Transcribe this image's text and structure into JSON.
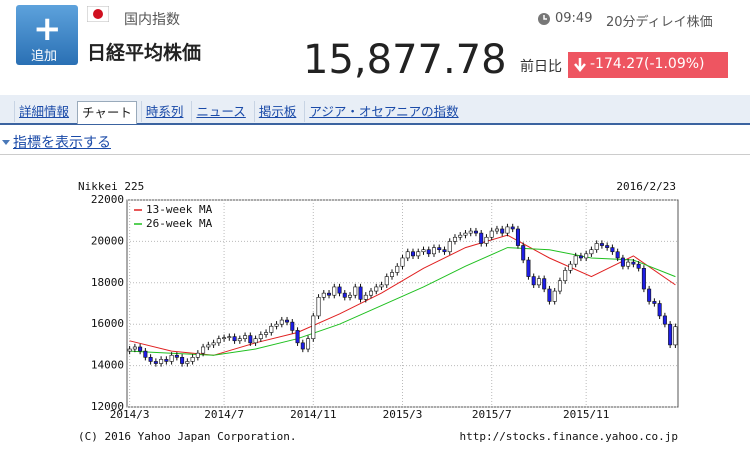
{
  "header": {
    "add_button": "追加",
    "market": "国内指数",
    "name": "日経平均株価",
    "time": "09:49",
    "delay": "20分ディレイ株価",
    "price": "15,877.78",
    "change_label": "前日比",
    "change": "-174.27(-1.09%)"
  },
  "tabs": [
    "詳細情報",
    "チャート",
    "時系列",
    "ニュース",
    "掲示板",
    "アジア・オセアニアの指数"
  ],
  "indicator_link": "指標を表示する",
  "chart_data": {
    "type": "candlestick",
    "title": "Nikkei 225",
    "date": "2016/2/23",
    "credit": "(C) 2016 Yahoo Japan Corporation.",
    "url": "http://stocks.finance.yahoo.co.jp",
    "up_color": "#ffffff",
    "down_color": "#1e1ee6",
    "grid": true,
    "xlim": [
      -0.5,
      104.5
    ],
    "xticks": [
      {
        "value": 0,
        "label": "2014/3"
      },
      {
        "value": 18,
        "label": "2014/7"
      },
      {
        "value": 35,
        "label": "2014/11"
      },
      {
        "value": 52,
        "label": "2015/3"
      },
      {
        "value": 69,
        "label": "2015/7"
      },
      {
        "value": 87,
        "label": "2015/11"
      }
    ],
    "ylim": [
      12000,
      22000
    ],
    "yticks": [
      12000,
      14000,
      16000,
      18000,
      20000,
      22000
    ],
    "open": [
      14700,
      14800,
      14900,
      14700,
      14400,
      14200,
      14100,
      14300,
      14200,
      14500,
      14400,
      14100,
      14200,
      14400,
      14600,
      14900,
      15000,
      15100,
      15300,
      15350,
      15400,
      15200,
      15300,
      15450,
      15100,
      15300,
      15500,
      15600,
      15900,
      16000,
      16200,
      16100,
      15700,
      15100,
      14800,
      15300,
      16400,
      17300,
      17500,
      17400,
      17800,
      17500,
      17300,
      17400,
      17800,
      17200,
      17400,
      17600,
      17800,
      17900,
      18300,
      18500,
      18800,
      19200,
      19500,
      19300,
      19500,
      19600,
      19400,
      19700,
      19600,
      19500,
      20000,
      20200,
      20300,
      20400,
      20500,
      20400,
      19900,
      20200,
      20500,
      20600,
      20400,
      20700,
      20600,
      19800,
      19100,
      18300,
      17900,
      18200,
      17700,
      17100,
      17600,
      18100,
      18600,
      18900,
      19300,
      19200,
      19400,
      19600,
      19900,
      19800,
      19700,
      19500,
      19200,
      18800,
      19000,
      18900,
      18700,
      17700,
      17100,
      17000,
      16400,
      16000,
      15000
    ],
    "high": [
      14950,
      15050,
      15050,
      14850,
      14550,
      14350,
      14450,
      14450,
      14650,
      14650,
      14550,
      14350,
      14550,
      14750,
      15050,
      15150,
      15250,
      15450,
      15500,
      15550,
      15550,
      15450,
      15600,
      15600,
      15450,
      15650,
      15750,
      16050,
      16150,
      16350,
      16350,
      16250,
      15850,
      15250,
      15450,
      16550,
      17450,
      17650,
      17650,
      17950,
      17950,
      17650,
      17550,
      17950,
      17950,
      17550,
      17750,
      17950,
      18050,
      18450,
      18650,
      18950,
      19350,
      19650,
      19650,
      19650,
      19750,
      19750,
      19850,
      19850,
      19750,
      20150,
      20350,
      20450,
      20550,
      20650,
      20650,
      20550,
      20350,
      20650,
      20750,
      20750,
      20850,
      20850,
      20750,
      19950,
      19250,
      18450,
      18350,
      18350,
      17850,
      17750,
      18250,
      18750,
      19050,
      19450,
      19450,
      19550,
      19750,
      20050,
      20050,
      19950,
      19850,
      19650,
      19350,
      19150,
      19150,
      19050,
      18850,
      17850,
      17250,
      17150,
      16550,
      16150,
      16030
    ],
    "low": [
      14550,
      14650,
      14550,
      14250,
      14050,
      13950,
      13950,
      14050,
      14050,
      14250,
      13950,
      13950,
      14050,
      14250,
      14450,
      14750,
      14850,
      14950,
      15150,
      15200,
      15050,
      15050,
      15150,
      14950,
      14950,
      15150,
      15350,
      15450,
      15750,
      15850,
      15950,
      15550,
      14950,
      14650,
      14650,
      15150,
      16250,
      17150,
      17250,
      17250,
      17350,
      17150,
      17150,
      17250,
      17050,
      17050,
      17250,
      17450,
      17650,
      17750,
      18150,
      18350,
      18650,
      19050,
      19150,
      19150,
      19350,
      19250,
      19250,
      19450,
      19350,
      19350,
      19850,
      20050,
      20150,
      20250,
      20250,
      19750,
      19750,
      20050,
      20350,
      20250,
      20250,
      20450,
      19650,
      18950,
      18150,
      17750,
      17750,
      17550,
      16950,
      16950,
      17450,
      17950,
      18450,
      18750,
      19050,
      19050,
      19250,
      19450,
      19650,
      19550,
      19350,
      19050,
      18650,
      18650,
      18750,
      18550,
      17550,
      16950,
      16850,
      16250,
      15850,
      14850,
      14850
    ],
    "close": [
      14800,
      14900,
      14700,
      14400,
      14200,
      14100,
      14300,
      14200,
      14500,
      14400,
      14100,
      14200,
      14400,
      14600,
      14900,
      15000,
      15100,
      15300,
      15350,
      15400,
      15200,
      15300,
      15450,
      15100,
      15300,
      15500,
      15600,
      15900,
      16000,
      16200,
      16100,
      15700,
      15100,
      14800,
      15300,
      16400,
      17300,
      17500,
      17400,
      17800,
      17500,
      17300,
      17400,
      17800,
      17200,
      17400,
      17600,
      17800,
      17900,
      18300,
      18500,
      18800,
      19200,
      19500,
      19300,
      19500,
      19600,
      19400,
      19700,
      19600,
      19500,
      20000,
      20200,
      20300,
      20400,
      20500,
      20400,
      19900,
      20200,
      20500,
      20600,
      20400,
      20700,
      20600,
      19800,
      19100,
      18300,
      17900,
      18200,
      17700,
      17100,
      17600,
      18100,
      18600,
      18900,
      19300,
      19200,
      19400,
      19600,
      19900,
      19800,
      19700,
      19500,
      19200,
      18800,
      19000,
      18900,
      18700,
      17700,
      17100,
      17000,
      16400,
      16000,
      15000,
      15878
    ],
    "lines": [
      {
        "name": "13-week MA",
        "color": "#e02020",
        "x": [
          0,
          8,
          16,
          24,
          32,
          40,
          48,
          56,
          64,
          72,
          80,
          88,
          96,
          104
        ],
        "values": [
          15200,
          14700,
          14500,
          15100,
          15600,
          16500,
          17500,
          18700,
          19700,
          20300,
          19200,
          18300,
          19300,
          17900
        ]
      },
      {
        "name": "26-week MA",
        "color": "#20c020",
        "x": [
          0,
          8,
          16,
          24,
          32,
          40,
          48,
          56,
          64,
          72,
          80,
          88,
          96,
          104
        ],
        "values": [
          14700,
          14600,
          14500,
          14800,
          15300,
          16000,
          16900,
          17800,
          18800,
          19700,
          19600,
          19200,
          19100,
          18300
        ]
      }
    ]
  }
}
